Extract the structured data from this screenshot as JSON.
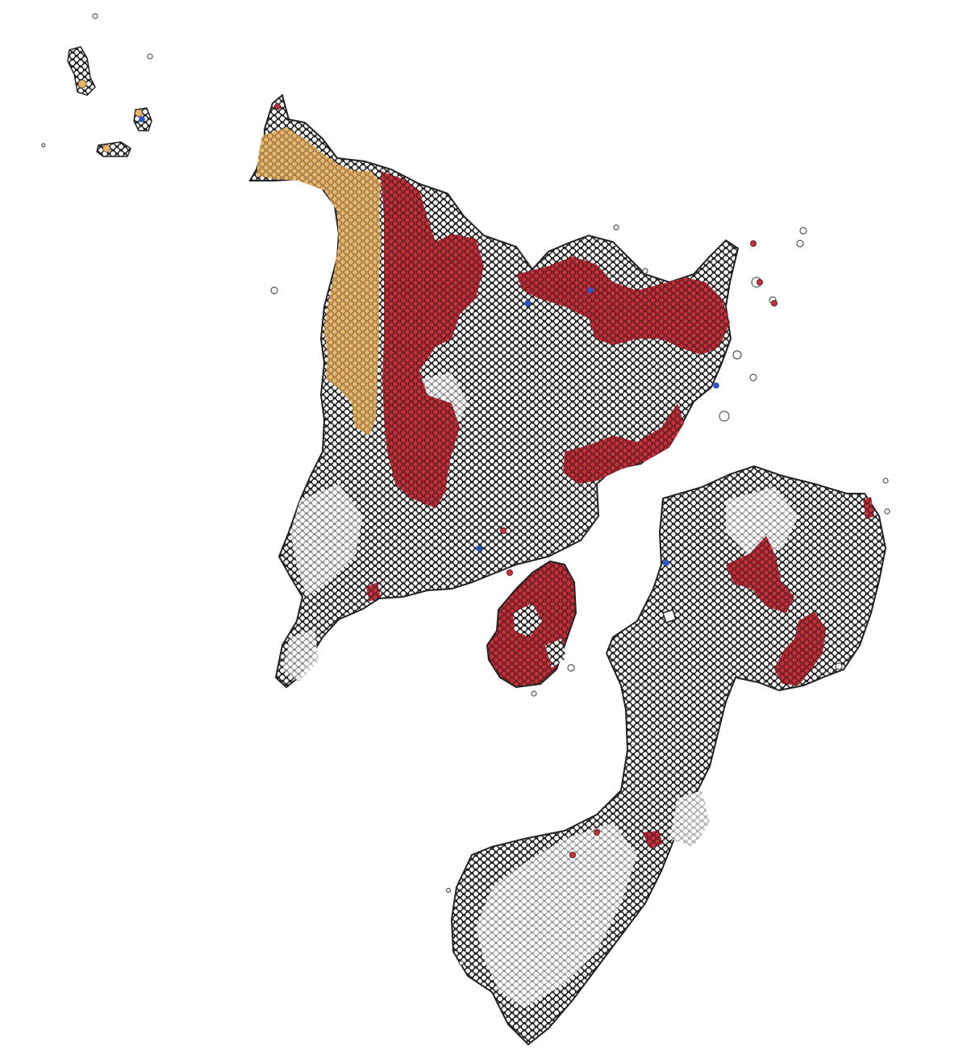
{
  "image": {
    "kind": "spatial-transcriptomics-spot-map",
    "background": "#ffffff",
    "colors": {
      "spot_outline_dark": "#1c1c1c",
      "spot_outline_light": "#9a9a9a",
      "spot_fill_default": "#ffffff",
      "cluster_red": "#c62f3a",
      "cluster_orange": "#e8b56d",
      "cluster_blue": "#2a55c4",
      "section_edge": "#222222"
    },
    "legend": null,
    "title": null
  }
}
